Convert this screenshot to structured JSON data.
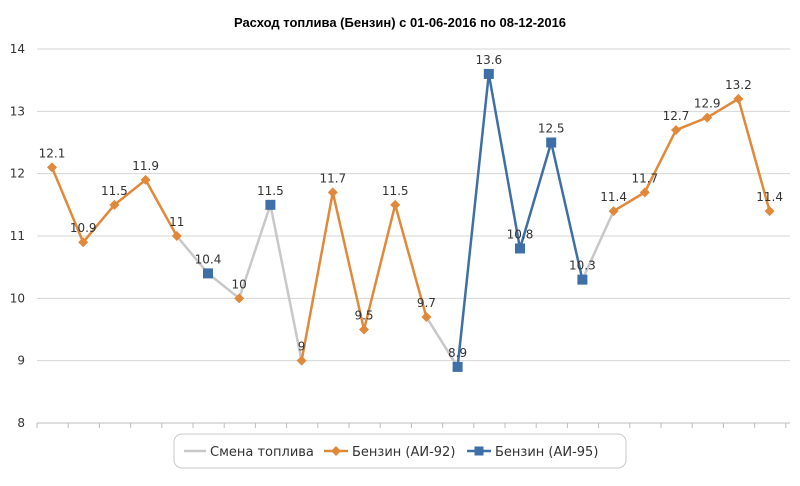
{
  "chart_data": {
    "type": "line",
    "title": "Расход топлива (Бензин) с 01-06-2016 по 08-12-2016",
    "xlabel": "",
    "ylabel": "",
    "ylim": [
      8,
      14
    ],
    "y_ticks": [
      "8",
      "9",
      "10",
      "11",
      "12",
      "13",
      "14"
    ],
    "grid": "horizontal",
    "legend_position": "bottom",
    "colors": {
      "change": "#c8c8c8",
      "ai92": "#e0893a",
      "ai95": "#3e6fa6",
      "grid": "#d4d4d4",
      "axis": "#bdbdbd"
    },
    "points": [
      {
        "y": 12.1,
        "label": "12.1",
        "fuel": "ai92"
      },
      {
        "y": 10.9,
        "label": "10.9",
        "fuel": "ai92"
      },
      {
        "y": 11.5,
        "label": "11.5",
        "fuel": "ai92"
      },
      {
        "y": 11.9,
        "label": "11.9",
        "fuel": "ai92"
      },
      {
        "y": 11.0,
        "label": "11",
        "fuel": "ai92"
      },
      {
        "y": 10.4,
        "label": "10.4",
        "fuel": "ai95"
      },
      {
        "y": 10.0,
        "label": "10",
        "fuel": "ai92"
      },
      {
        "y": 11.5,
        "label": "11.5",
        "fuel": "ai95"
      },
      {
        "y": 9.0,
        "label": "9",
        "fuel": "ai92"
      },
      {
        "y": 11.7,
        "label": "11.7",
        "fuel": "ai92"
      },
      {
        "y": 9.5,
        "label": "9.5",
        "fuel": "ai92"
      },
      {
        "y": 11.5,
        "label": "11.5",
        "fuel": "ai92"
      },
      {
        "y": 9.7,
        "label": "9.7",
        "fuel": "ai92"
      },
      {
        "y": 8.9,
        "label": "8.9",
        "fuel": "ai95"
      },
      {
        "y": 13.6,
        "label": "13.6",
        "fuel": "ai95"
      },
      {
        "y": 10.8,
        "label": "10.8",
        "fuel": "ai95"
      },
      {
        "y": 12.5,
        "label": "12.5",
        "fuel": "ai95"
      },
      {
        "y": 10.3,
        "label": "10.3",
        "fuel": "ai95"
      },
      {
        "y": 11.4,
        "label": "11.4",
        "fuel": "ai92"
      },
      {
        "y": 11.7,
        "label": "11.7",
        "fuel": "ai92"
      },
      {
        "y": 12.7,
        "label": "12.7",
        "fuel": "ai92"
      },
      {
        "y": 12.9,
        "label": "12.9",
        "fuel": "ai92"
      },
      {
        "y": 13.2,
        "label": "13.2",
        "fuel": "ai92"
      },
      {
        "y": 11.4,
        "label": "11.4",
        "fuel": "ai92"
      }
    ],
    "series": [
      {
        "key": "change",
        "name": "Смена топлива"
      },
      {
        "key": "ai92",
        "name": "Бензин (АИ-92)"
      },
      {
        "key": "ai95",
        "name": "Бензин (АИ-95)"
      }
    ]
  }
}
